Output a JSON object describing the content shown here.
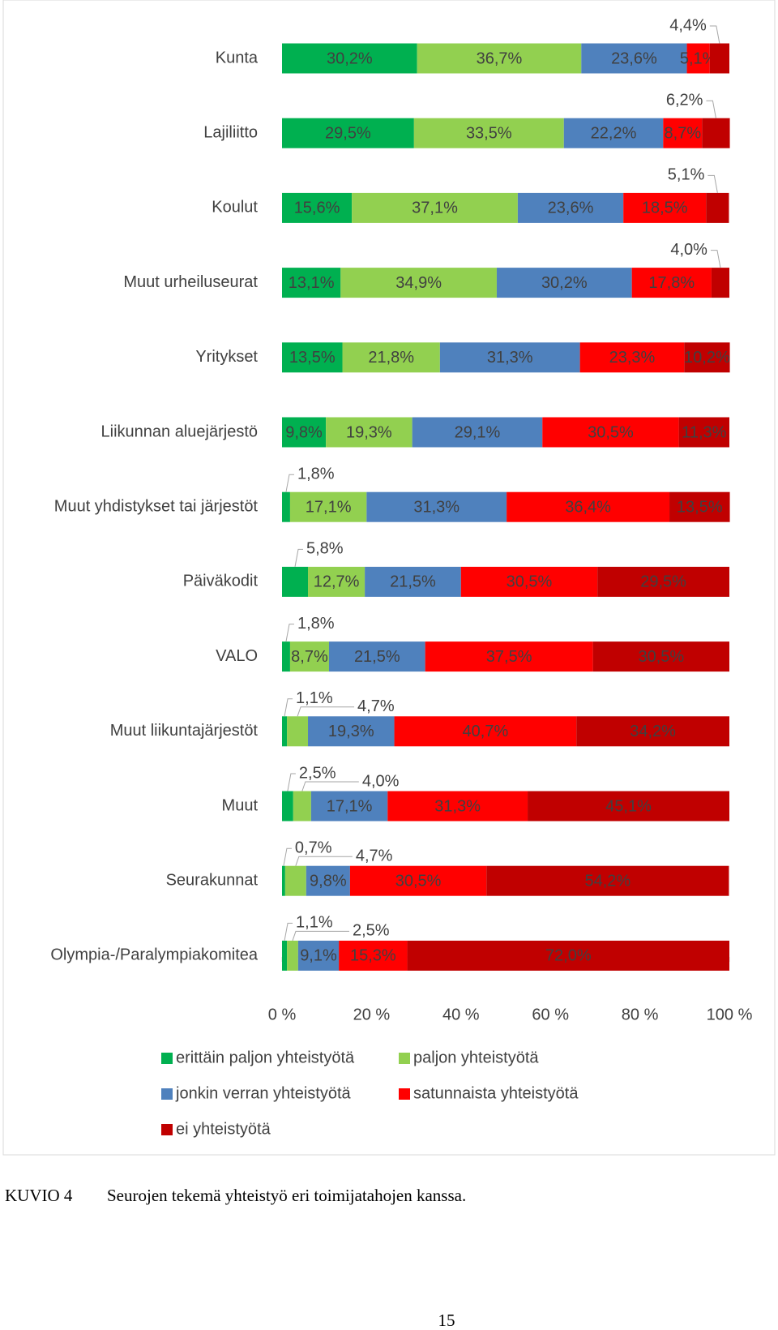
{
  "chart_data": {
    "type": "stacked-barh",
    "categories": [
      "Kunta",
      "Lajiliitto",
      "Koulut",
      "Muut urheiluseurat",
      "Yritykset",
      "Liikunnan aluejärjestö",
      "Muut yhdistykset tai järjestöt",
      "Päiväkodit",
      "VALO",
      "Muut liikuntajärjestöt",
      "Muut",
      "Seurakunnat",
      "Olympia-/Paralympiakomitea"
    ],
    "series": [
      {
        "name": "erittäin paljon yhteistyötä",
        "color": "#00b050",
        "values": [
          30.2,
          29.5,
          15.6,
          13.1,
          13.5,
          9.8,
          1.8,
          5.8,
          1.8,
          1.1,
          2.5,
          0.7,
          1.1
        ],
        "value_labels": [
          "30,2%",
          "29,5%",
          "15,6%",
          "13,1%",
          "13,5%",
          "9,8%",
          "1,8%",
          "5,8%",
          "1,8%",
          "1,1%",
          "2,5%",
          "0,7%",
          "1,1%"
        ]
      },
      {
        "name": "paljon yhteistyötä",
        "color": "#92d050",
        "values": [
          36.7,
          33.5,
          37.1,
          34.9,
          21.8,
          19.3,
          17.1,
          12.7,
          8.7,
          4.7,
          4.0,
          4.7,
          2.5
        ],
        "value_labels": [
          "36,7%",
          "33,5%",
          "37,1%",
          "34,9%",
          "21,8%",
          "19,3%",
          "17,1%",
          "12,7%",
          "8,7%",
          "4,7%",
          "4,0%",
          "4,7%",
          "2,5%"
        ]
      },
      {
        "name": "jonkin verran yhteistyötä",
        "color": "#4f81bd",
        "values": [
          23.6,
          22.2,
          23.6,
          30.2,
          31.3,
          29.1,
          31.3,
          21.5,
          21.5,
          19.3,
          17.1,
          9.8,
          9.1
        ],
        "value_labels": [
          "23,6%",
          "22,2%",
          "23,6%",
          "30,2%",
          "31,3%",
          "29,1%",
          "31,3%",
          "21,5%",
          "21,5%",
          "19,3%",
          "17,1%",
          "9,8%",
          "9,1%"
        ]
      },
      {
        "name": "satunnaista yhteistyötä",
        "color": "#ff0000",
        "values": [
          5.1,
          8.7,
          18.5,
          17.8,
          23.3,
          30.5,
          36.4,
          30.5,
          37.5,
          40.7,
          31.3,
          30.5,
          15.3
        ],
        "value_labels": [
          "5,1%",
          "8,7%",
          "18,5%",
          "17,8%",
          "23,3%",
          "30,5%",
          "36,4%",
          "30,5%",
          "37,5%",
          "40,7%",
          "31,3%",
          "30,5%",
          "15,3%"
        ]
      },
      {
        "name": "ei yhteistyötä",
        "color": "#c00000",
        "values": [
          4.4,
          6.2,
          5.1,
          4.0,
          10.2,
          11.3,
          13.5,
          29.5,
          30.5,
          34.2,
          45.1,
          54.2,
          72.0
        ],
        "value_labels": [
          "4,4%",
          "6,2%",
          "5,1%",
          "4,0%",
          "10,2%",
          "11,3%",
          "13,5%",
          "29,5%",
          "30,5%",
          "34,2%",
          "45,1%",
          "54,2%",
          "72,0%"
        ]
      }
    ],
    "xlim": [
      0,
      100
    ],
    "xticks": [
      {
        "value": 0,
        "label": "0 %"
      },
      {
        "value": 20,
        "label": "20 %"
      },
      {
        "value": 40,
        "label": "40 %"
      },
      {
        "value": 60,
        "label": "60 %"
      },
      {
        "value": 80,
        "label": "80 %"
      },
      {
        "value": 100,
        "label": "100 %"
      }
    ]
  },
  "caption": {
    "label": "KUVIO 4",
    "text": "Seurojen tekemä yhteistyö eri toimijatahojen kanssa."
  },
  "page_number": "15"
}
